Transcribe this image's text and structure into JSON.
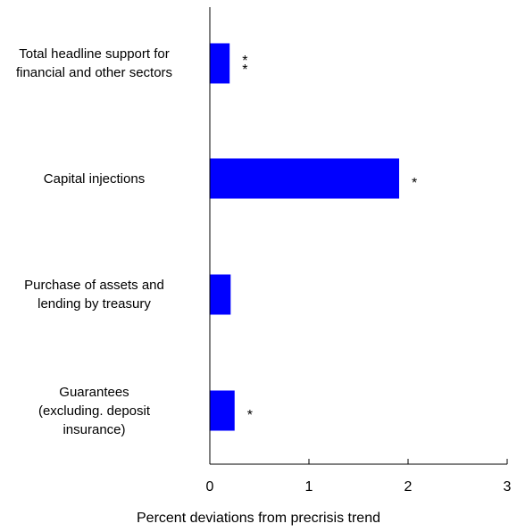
{
  "chart_data": {
    "type": "bar",
    "orientation": "horizontal",
    "categories": [
      "Total headline support for\nfinancial and other sectors",
      "Capital injections",
      "Purchase of assets and\nlending by treasury",
      "Guarantees\n(excluding. deposit\ninsurance)"
    ],
    "values": [
      0.2,
      1.91,
      0.21,
      0.25
    ],
    "annotations": [
      "**",
      "*",
      "",
      "*"
    ],
    "xlabel": "Percent deviations from precrisis trend",
    "xlim": [
      0,
      3
    ],
    "xticks": [
      "0",
      "1",
      "2",
      "3"
    ],
    "bar_color": "#0000FF",
    "grid": false,
    "legend": "none"
  }
}
